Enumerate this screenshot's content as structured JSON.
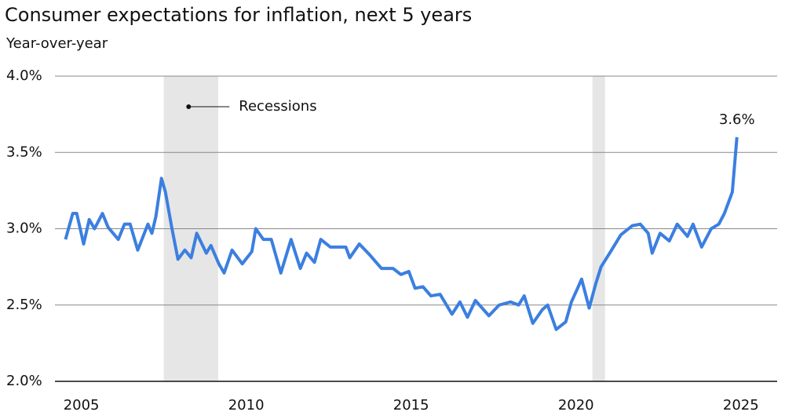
{
  "chart_data": {
    "type": "line",
    "title": "Consumer expectations for inflation, next 5 years",
    "subtitle": "Year-over-year",
    "recession_label": "Recessions",
    "recessions": [
      [
        2007.5,
        2009.15
      ],
      [
        2020.5,
        2020.88
      ]
    ],
    "xlim": [
      2004.2,
      2026.1
    ],
    "xticks": [
      2005,
      2010,
      2015,
      2020,
      2025
    ],
    "ylim": [
      2.0,
      4.0
    ],
    "yticks": [
      {
        "value": 2.0,
        "label": "2.0%"
      },
      {
        "value": 2.5,
        "label": "2.5%"
      },
      {
        "value": 3.0,
        "label": "3.0%"
      },
      {
        "value": 3.5,
        "label": "3.5%"
      },
      {
        "value": 4.0,
        "label": "4.0%"
      }
    ],
    "grid": true,
    "series": [
      {
        "color": "#3b7fe0",
        "x": [
          2004.52,
          2004.74,
          2004.86,
          2005.07,
          2005.24,
          2005.4,
          2005.64,
          2005.81,
          2006.12,
          2006.31,
          2006.48,
          2006.71,
          2007.02,
          2007.14,
          2007.26,
          2007.43,
          2007.55,
          2007.74,
          2007.93,
          2008.14,
          2008.33,
          2008.5,
          2008.79,
          2008.93,
          2009.17,
          2009.33,
          2009.57,
          2009.88,
          2010.17,
          2010.29,
          2010.52,
          2010.76,
          2011.05,
          2011.36,
          2011.64,
          2011.83,
          2012.07,
          2012.26,
          2012.55,
          2012.79,
          2013.02,
          2013.14,
          2013.43,
          2013.74,
          2014.1,
          2014.45,
          2014.69,
          2014.93,
          2015.12,
          2015.36,
          2015.6,
          2015.88,
          2016.24,
          2016.48,
          2016.71,
          2016.95,
          2017.36,
          2017.67,
          2018.02,
          2018.26,
          2018.43,
          2018.69,
          2018.98,
          2019.14,
          2019.4,
          2019.69,
          2019.86,
          2020.05,
          2020.17,
          2020.4,
          2020.6,
          2020.76,
          2021.05,
          2021.36,
          2021.71,
          2021.95,
          2022.19,
          2022.31,
          2022.55,
          2022.83,
          2023.07,
          2023.38,
          2023.55,
          2023.81,
          2024.1,
          2024.33,
          2024.5,
          2024.74,
          2024.88
        ],
        "values": [
          2.93,
          3.1,
          3.1,
          2.9,
          3.06,
          3.0,
          3.1,
          3.01,
          2.93,
          3.03,
          3.03,
          2.86,
          3.03,
          2.97,
          3.08,
          3.33,
          3.24,
          3.01,
          2.8,
          2.86,
          2.81,
          2.97,
          2.84,
          2.89,
          2.77,
          2.71,
          2.86,
          2.77,
          2.85,
          3.0,
          2.93,
          2.93,
          2.71,
          2.93,
          2.74,
          2.84,
          2.78,
          2.93,
          2.88,
          2.88,
          2.88,
          2.81,
          2.9,
          2.83,
          2.74,
          2.74,
          2.7,
          2.72,
          2.61,
          2.62,
          2.56,
          2.57,
          2.44,
          2.52,
          2.42,
          2.53,
          2.43,
          2.5,
          2.52,
          2.5,
          2.56,
          2.38,
          2.47,
          2.5,
          2.34,
          2.39,
          2.52,
          2.61,
          2.67,
          2.48,
          2.64,
          2.75,
          2.85,
          2.96,
          3.02,
          3.03,
          2.97,
          2.84,
          2.97,
          2.92,
          3.03,
          2.95,
          3.03,
          2.88,
          3.0,
          3.03,
          3.1,
          3.24,
          3.6
        ],
        "value_labels": [
          null,
          null,
          null,
          null,
          null,
          null,
          null,
          null,
          null,
          null,
          null,
          null,
          null,
          null,
          null,
          null,
          null,
          null,
          null,
          null,
          null,
          null,
          null,
          null,
          null,
          null,
          null,
          null,
          null,
          null,
          null,
          null,
          null,
          null,
          null,
          null,
          null,
          null,
          null,
          null,
          null,
          null,
          null,
          null,
          null,
          null,
          null,
          null,
          null,
          null,
          null,
          null,
          null,
          null,
          null,
          null,
          null,
          null,
          null,
          null,
          null,
          null,
          null,
          null,
          null,
          null,
          null,
          null,
          null,
          null,
          null,
          null,
          null,
          null,
          null,
          null,
          null,
          null,
          null,
          null,
          null,
          null,
          null,
          null,
          null,
          null,
          null,
          null,
          "3.6%"
        ]
      }
    ]
  }
}
